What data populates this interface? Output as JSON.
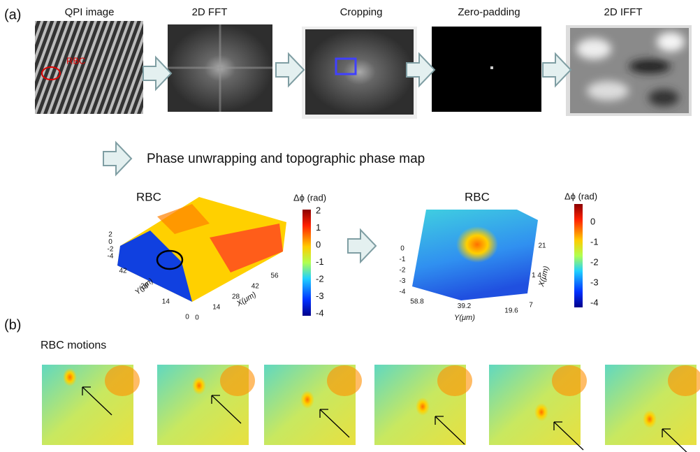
{
  "panel_a": {
    "label": "(a)",
    "steps": [
      "QPI image",
      "2D FFT",
      "Cropping",
      "Zero-padding",
      "2D IFFT"
    ],
    "rbc_marker": "RBC",
    "caption": "Phase unwrapping and topographic phase map"
  },
  "plot_left": {
    "title": "RBC",
    "colorbar_label": "Δϕ (rad)",
    "colorbar_ticks": [
      "2",
      "1",
      "0",
      "-1",
      "-2",
      "-3",
      "-4"
    ],
    "z_ticks": [
      "2",
      "0",
      "-2",
      "-4"
    ],
    "y_ticks": [
      "42",
      "28",
      "14",
      "0"
    ],
    "y_label": "Y(μm)",
    "x_ticks": [
      "0",
      "14",
      "28",
      "42",
      "56"
    ],
    "x_label": "X(μm)"
  },
  "plot_right": {
    "title": "RBC",
    "colorbar_label": "Δϕ (rad)",
    "colorbar_ticks": [
      "0",
      "-1",
      "-2",
      "-3",
      "-4"
    ],
    "z_ticks": [
      "0",
      "-1",
      "-2",
      "-3",
      "-4"
    ],
    "y_ticks": [
      "58.8",
      "39.2",
      "19.6"
    ],
    "y_label": "Y(μm)",
    "x_ticks": [
      "21",
      "1 4",
      "7"
    ],
    "x_label": "X(μm)"
  },
  "panel_b": {
    "label": "(b)",
    "title": "RBC motions"
  }
}
